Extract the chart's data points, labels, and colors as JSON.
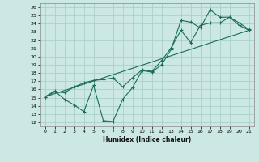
{
  "xlabel": "Humidex (Indice chaleur)",
  "background_color": "#cce8e4",
  "grid_color": "#aacfca",
  "line_color": "#1a6b5a",
  "xlim": [
    -0.5,
    21.5
  ],
  "ylim": [
    11.5,
    26.5
  ],
  "xticks": [
    0,
    1,
    2,
    3,
    4,
    5,
    6,
    7,
    8,
    9,
    10,
    11,
    12,
    13,
    14,
    15,
    16,
    17,
    18,
    19,
    20,
    21
  ],
  "yticks": [
    12,
    13,
    14,
    15,
    16,
    17,
    18,
    19,
    20,
    21,
    22,
    23,
    24,
    25,
    26
  ],
  "line1_x": [
    0,
    1,
    2,
    3,
    4,
    5,
    6,
    7,
    8,
    9,
    10,
    11,
    12,
    13,
    14,
    15,
    16,
    17,
    18,
    19,
    20,
    21
  ],
  "line1_y": [
    15.1,
    15.8,
    14.8,
    14.1,
    13.3,
    16.5,
    12.2,
    12.1,
    14.8,
    16.2,
    18.3,
    18.1,
    19.0,
    20.9,
    24.4,
    24.2,
    23.5,
    25.7,
    24.8,
    24.8,
    24.1,
    23.3
  ],
  "line2_x": [
    0,
    1,
    2,
    3,
    4,
    5,
    6,
    7,
    8,
    9,
    10,
    11,
    12,
    13,
    14,
    15,
    16,
    17,
    18,
    19,
    20,
    21
  ],
  "line2_y": [
    15.1,
    15.7,
    15.6,
    16.3,
    16.8,
    17.1,
    17.2,
    17.4,
    16.3,
    17.4,
    18.4,
    18.2,
    19.5,
    21.1,
    23.2,
    21.7,
    23.8,
    24.1,
    24.1,
    24.8,
    23.8,
    23.2
  ],
  "line3_x": [
    0,
    21
  ],
  "line3_y": [
    15.1,
    23.2
  ]
}
